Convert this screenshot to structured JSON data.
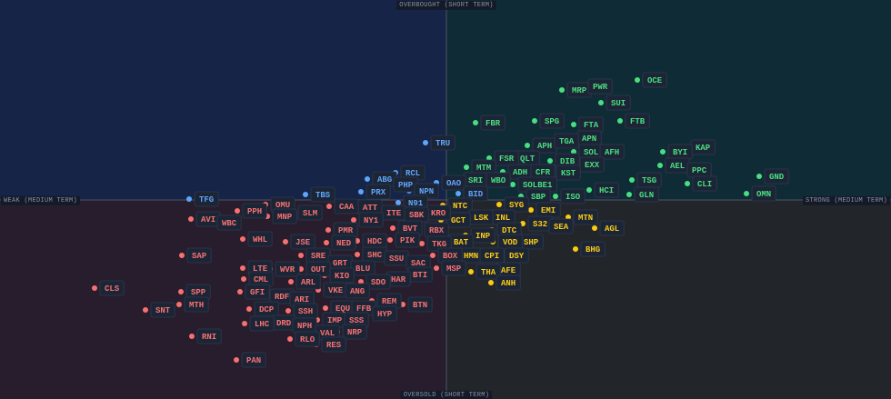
{
  "chart_data": {
    "type": "scatter",
    "y_label_top": "OVERBOUGHT (SHORT TERM)",
    "y_label_bottom": "OVERSOLD (SHORT TERM)",
    "x_label_left": "WEAK (MEDIUM TERM)",
    "x_label_right": "STRONG (MEDIUM TERM)",
    "xlim": [
      -491,
      489
    ],
    "ylim": [
      -219,
      220
    ],
    "series": [
      {
        "color": "#4ade80",
        "labels": [
          "OCE",
          "MRP",
          "PWR",
          "SUI",
          "FBR",
          "SPG",
          "FTA",
          "FTB",
          "APN",
          "APH",
          "TGA",
          "KAP",
          "BYI",
          "SOL",
          "AFH",
          "QLT",
          "FSR",
          "DIB",
          "EXX",
          "AEL",
          "PPC",
          "MTM",
          "ADH",
          "CFR",
          "KST",
          "GND",
          "SRI",
          "WBO",
          "TSG",
          "CLI",
          "SOLBE1",
          "HCI",
          "OMN",
          "GLN",
          "SBP",
          "ISO"
        ],
        "x": [
          210,
          127,
          150,
          170,
          32,
          97,
          140,
          191,
          138,
          89,
          113,
          263,
          238,
          140,
          163,
          70,
          47,
          114,
          141,
          235,
          259,
          22,
          62,
          87,
          115,
          344,
          13,
          38,
          204,
          265,
          73,
          157,
          330,
          201,
          82,
          120
        ],
        "y": [
          132,
          121,
          125,
          107,
          85,
          87,
          83,
          87,
          68,
          60,
          65,
          58,
          53,
          53,
          53,
          46,
          46,
          43,
          39,
          38,
          33,
          36,
          31,
          31,
          30,
          26,
          22,
          22,
          22,
          18,
          17,
          11,
          7,
          6,
          4,
          4
        ]
      },
      {
        "color": "#60a5fa",
        "labels": [
          "TRU",
          "RCL",
          "ABG",
          "PHP",
          "NPN",
          "OAO",
          "PRX",
          "BID",
          "TBS",
          "TFG",
          "N91"
        ],
        "x": [
          -23,
          -56,
          -87,
          -64,
          -41,
          -11,
          -94,
          13,
          -155,
          -283,
          -53
        ],
        "y": [
          63,
          30,
          23,
          17,
          10,
          19,
          9,
          7,
          6,
          1,
          -3
        ]
      },
      {
        "color": "#facc15",
        "labels": [
          "NTC",
          "SYG",
          "EMI",
          "INL",
          "LSK",
          "MTN",
          "GCT",
          "S32",
          "SEA",
          "AGL",
          "DTC",
          "INP",
          "SHP",
          "VOD",
          "BAT",
          "BHG",
          "HMN",
          "CPI",
          "DSY",
          "AFE",
          "THA",
          "ANH"
        ],
        "x": [
          -4,
          58,
          93,
          43,
          19,
          134,
          -6,
          84,
          107,
          163,
          50,
          21,
          74,
          51,
          -3,
          142,
          8,
          31,
          58,
          49,
          27,
          49
        ],
        "y": [
          -6,
          -5,
          -11,
          -19,
          -19,
          -19,
          -22,
          -26,
          -29,
          -31,
          -33,
          -39,
          -46,
          -46,
          -46,
          -54,
          -61,
          -61,
          -61,
          -77,
          -79,
          -91
        ]
      },
      {
        "color": "#f87171",
        "labels": [
          "OMU",
          "CAA",
          "ATT",
          "PPH",
          "ITE",
          "KRO",
          "SLM",
          "SBK",
          "MNP",
          "AVI",
          "NY1",
          "WBC",
          "BVT",
          "PMR",
          "RBX",
          "WHL",
          "PIK",
          "HDC",
          "JSE",
          "NED",
          "TKG",
          "SHC",
          "SRE",
          "SAP",
          "BOX",
          "SSU",
          "GRT",
          "SAC",
          "LTE",
          "BLU",
          "MSP",
          "WVR",
          "OUT",
          "BTI",
          "KIO",
          "CML",
          "HAR",
          "ARL",
          "SDO",
          "CLS",
          "VKE",
          "ANG",
          "GFI",
          "SPP",
          "RDF",
          "ARI",
          "REM",
          "MTH",
          "BTN",
          "EQU",
          "FFB",
          "DCP",
          "SNT",
          "SSH",
          "HYP",
          "IMP",
          "SSS",
          "DRD",
          "LHC",
          "NPH",
          "NRP",
          "VAL",
          "RNI",
          "RLO",
          "RES",
          "PAN"
        ],
        "x": [
          -199,
          -129,
          -103,
          -230,
          -77,
          -28,
          -169,
          -52,
          -197,
          -281,
          -102,
          -258,
          -59,
          -130,
          -30,
          -224,
          -62,
          -98,
          -177,
          -132,
          -27,
          -98,
          -160,
          -291,
          -15,
          -74,
          -136,
          -50,
          -224,
          -111,
          -11,
          -194,
          -160,
          -48,
          -134,
          -223,
          -72,
          -171,
          -94,
          -387,
          -141,
          -117,
          -227,
          -292,
          -200,
          -178,
          -82,
          -294,
          -48,
          -133,
          -110,
          -217,
          -331,
          -174,
          -87,
          -142,
          -118,
          -198,
          -222,
          -175,
          -120,
          -150,
          -280,
          -172,
          -143,
          -231
        ],
        "y": [
          -5,
          -7,
          -8,
          -12,
          -14,
          -14,
          -14,
          -16,
          -18,
          -21,
          -22,
          -25,
          -31,
          -33,
          -33,
          -43,
          -44,
          -45,
          -46,
          -47,
          -48,
          -60,
          -61,
          -61,
          -61,
          -64,
          -69,
          -69,
          -75,
          -75,
          -75,
          -76,
          -76,
          -82,
          -83,
          -87,
          -87,
          -90,
          -90,
          -97,
          -99,
          -100,
          -101,
          -101,
          -106,
          -109,
          -111,
          -115,
          -115,
          -119,
          -119,
          -120,
          -121,
          -122,
          -125,
          -132,
          -132,
          -135,
          -136,
          -138,
          -145,
          -146,
          -150,
          -153,
          -159,
          -176
        ]
      }
    ]
  }
}
